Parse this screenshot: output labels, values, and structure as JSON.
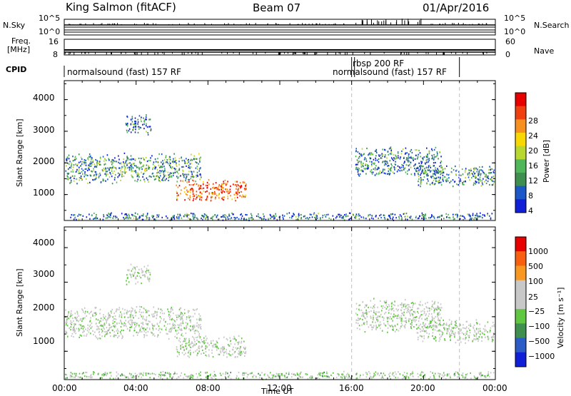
{
  "header": {
    "station": "King Salmon (fitACF)",
    "beam": "Beam 07",
    "date": "01/Apr/2016"
  },
  "aux_panels": {
    "nsky": {
      "label": "N.Sky",
      "ticks": [
        "10^5",
        "10^0"
      ]
    },
    "nsearch": {
      "label": "N.Search",
      "ticks": [
        "10^5",
        "10^0"
      ]
    },
    "freq": {
      "label_line1": "Freq.",
      "label_line2": "[MHz]",
      "ticks": [
        "16",
        "8"
      ]
    },
    "nave": {
      "label": "Nave",
      "ticks": [
        "60",
        "0"
      ]
    },
    "cpid": {
      "label": "CPID"
    }
  },
  "modes": [
    {
      "text": "normalsound (fast) 157 RF",
      "start": "00:00",
      "end": "16:00"
    },
    {
      "text": "rbsp 200 RF",
      "start": "16:00",
      "end": "16:10"
    },
    {
      "text": "normalsound (fast) 157 RF",
      "start": "16:10",
      "end": "22:00"
    }
  ],
  "x_axis": {
    "label": "Time UT",
    "ticks": [
      "00:00",
      "04:00",
      "08:00",
      "12:00",
      "16:00",
      "20:00",
      "00:00"
    ],
    "range_hours": [
      0,
      24
    ],
    "marker_lines_hours": [
      16,
      22
    ]
  },
  "y_axis": {
    "label": "Slant Range [km]",
    "ticks": [
      1000,
      2000,
      3000,
      4000
    ],
    "range_km": [
      180,
      4600
    ]
  },
  "chart_data": [
    {
      "type": "heatmap",
      "parameter": "Power",
      "colorbar_label": "Power [dB]",
      "colorbar_ticks": [
        "28",
        "24",
        "20",
        "16",
        "12",
        "8",
        "4"
      ],
      "colorbar_range": [
        0,
        30
      ],
      "colors": [
        "#1020d8",
        "#1c58c8",
        "#3f8f4f",
        "#50b85a",
        "#b8d830",
        "#f8d800",
        "#f89020",
        "#f04010",
        "#e80000"
      ],
      "clusters": [
        {
          "t0": 0.0,
          "t1": 7.6,
          "r0": 1350,
          "r1": 2350,
          "value": 9
        },
        {
          "t0": 6.2,
          "t1": 10.1,
          "r0": 800,
          "r1": 1500,
          "value": 22
        },
        {
          "t0": 16.2,
          "t1": 21.0,
          "r0": 1550,
          "r1": 2550,
          "value": 7
        },
        {
          "t0": 19.6,
          "t1": 24.0,
          "r0": 1250,
          "r1": 1950,
          "value": 8
        },
        {
          "t0": 0.0,
          "t1": 24.0,
          "r0": 200,
          "r1": 450,
          "value": 6
        },
        {
          "t0": 3.4,
          "t1": 4.8,
          "r0": 2900,
          "r1": 3550,
          "value": 6
        }
      ]
    },
    {
      "type": "heatmap",
      "parameter": "Velocity",
      "colorbar_label": "Velocity [m s⁻¹]",
      "colorbar_ticks": [
        "1000",
        "500",
        "100",
        "25",
        "−25",
        "−100",
        "−500",
        "−1000"
      ],
      "colorbar_range": [
        -1200,
        1200
      ],
      "colors": [
        "#1020d8",
        "#2c5cc8",
        "#3f8f4f",
        "#60c840",
        "#c8c8c8",
        "#c8c8c8",
        "#f89820",
        "#f86010",
        "#e80000"
      ],
      "clusters": [
        {
          "t0": 0.0,
          "t1": 7.6,
          "r0": 1350,
          "r1": 2350,
          "value": 0
        },
        {
          "t0": 6.2,
          "t1": 10.1,
          "r0": 800,
          "r1": 1500,
          "value": -10
        },
        {
          "t0": 16.2,
          "t1": 21.0,
          "r0": 1550,
          "r1": 2550,
          "value": 0
        },
        {
          "t0": 19.6,
          "t1": 24.0,
          "r0": 1250,
          "r1": 1950,
          "value": 0
        },
        {
          "t0": 0.0,
          "t1": 24.0,
          "r0": 200,
          "r1": 450,
          "value": -150
        },
        {
          "t0": 3.4,
          "t1": 4.8,
          "r0": 2900,
          "r1": 3550,
          "value": 0
        }
      ]
    }
  ]
}
